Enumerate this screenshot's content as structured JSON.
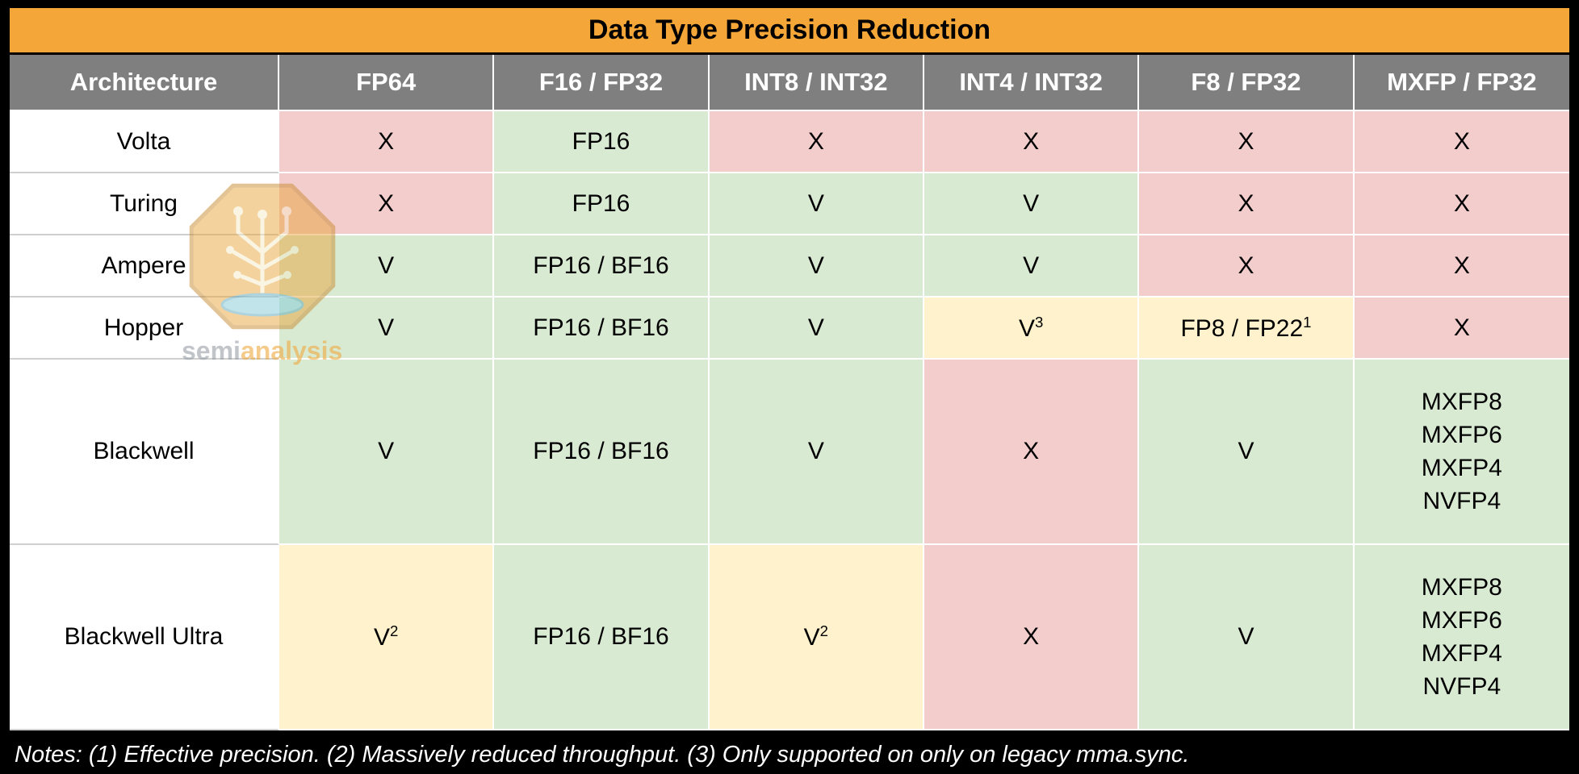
{
  "title_bar": "Data Type Precision Reduction",
  "colors": {
    "title_bg": "#F4A738",
    "header_bg": "#7F7F7F",
    "header_text": "#FFFFFF",
    "green": "#D9EAD3",
    "red": "#F3CCCC",
    "yellow": "#FFF2CC",
    "white": "#FFFFFF",
    "frame": "#000000"
  },
  "chart_data": {
    "type": "table",
    "title": "Data Type Precision Reduction",
    "columns": [
      "Architecture",
      "FP64",
      "F16 / FP32",
      "INT8 / INT32",
      "INT4 / INT32",
      "F8 / FP32",
      "MXFP / FP32"
    ],
    "rows": [
      {
        "architecture": "Volta",
        "cells": [
          {
            "text": "X",
            "color": "red"
          },
          {
            "text": "FP16",
            "color": "green"
          },
          {
            "text": "X",
            "color": "red"
          },
          {
            "text": "X",
            "color": "red"
          },
          {
            "text": "X",
            "color": "red"
          },
          {
            "text": "X",
            "color": "red"
          }
        ]
      },
      {
        "architecture": "Turing",
        "cells": [
          {
            "text": "X",
            "color": "red"
          },
          {
            "text": "FP16",
            "color": "green"
          },
          {
            "text": "V",
            "color": "green"
          },
          {
            "text": "V",
            "color": "green"
          },
          {
            "text": "X",
            "color": "red"
          },
          {
            "text": "X",
            "color": "red"
          }
        ]
      },
      {
        "architecture": "Ampere",
        "cells": [
          {
            "text": "V",
            "color": "green"
          },
          {
            "text": "FP16 / BF16",
            "color": "green"
          },
          {
            "text": "V",
            "color": "green"
          },
          {
            "text": "V",
            "color": "green"
          },
          {
            "text": "X",
            "color": "red"
          },
          {
            "text": "X",
            "color": "red"
          }
        ]
      },
      {
        "architecture": "Hopper",
        "cells": [
          {
            "text": "V",
            "color": "green"
          },
          {
            "text": "FP16 / BF16",
            "color": "green"
          },
          {
            "text": "V",
            "color": "green"
          },
          {
            "text": "V",
            "sup": "3",
            "color": "yellow"
          },
          {
            "text": "FP8 / FP22",
            "sup": "1",
            "color": "yellow"
          },
          {
            "text": "X",
            "color": "red"
          }
        ]
      },
      {
        "architecture": "Blackwell",
        "cells": [
          {
            "text": "V",
            "color": "green"
          },
          {
            "text": "FP16 / BF16",
            "color": "green"
          },
          {
            "text": "V",
            "color": "green"
          },
          {
            "text": "X",
            "color": "red"
          },
          {
            "text": "V",
            "color": "green"
          },
          {
            "lines": [
              "MXFP8",
              "MXFP6",
              "MXFP4",
              "NVFP4"
            ],
            "color": "green"
          }
        ]
      },
      {
        "architecture": "Blackwell Ultra",
        "cells": [
          {
            "text": "V",
            "sup": "2",
            "color": "yellow"
          },
          {
            "text": "FP16 / BF16",
            "color": "green"
          },
          {
            "text": "V",
            "sup": "2",
            "color": "yellow"
          },
          {
            "text": "X",
            "color": "red"
          },
          {
            "text": "V",
            "color": "green"
          },
          {
            "lines": [
              "MXFP8",
              "MXFP6",
              "MXFP4",
              "NVFP4"
            ],
            "color": "green"
          }
        ]
      }
    ]
  },
  "footer": {
    "note": "Notes: (1) Effective precision. (2) Massively reduced throughput. (3) Only supported on only on legacy mma.sync."
  },
  "watermark": {
    "text_light": "semi",
    "text_accent": "analysis",
    "accent_color": "#F0AA3F",
    "light_color": "#98A0A8"
  }
}
